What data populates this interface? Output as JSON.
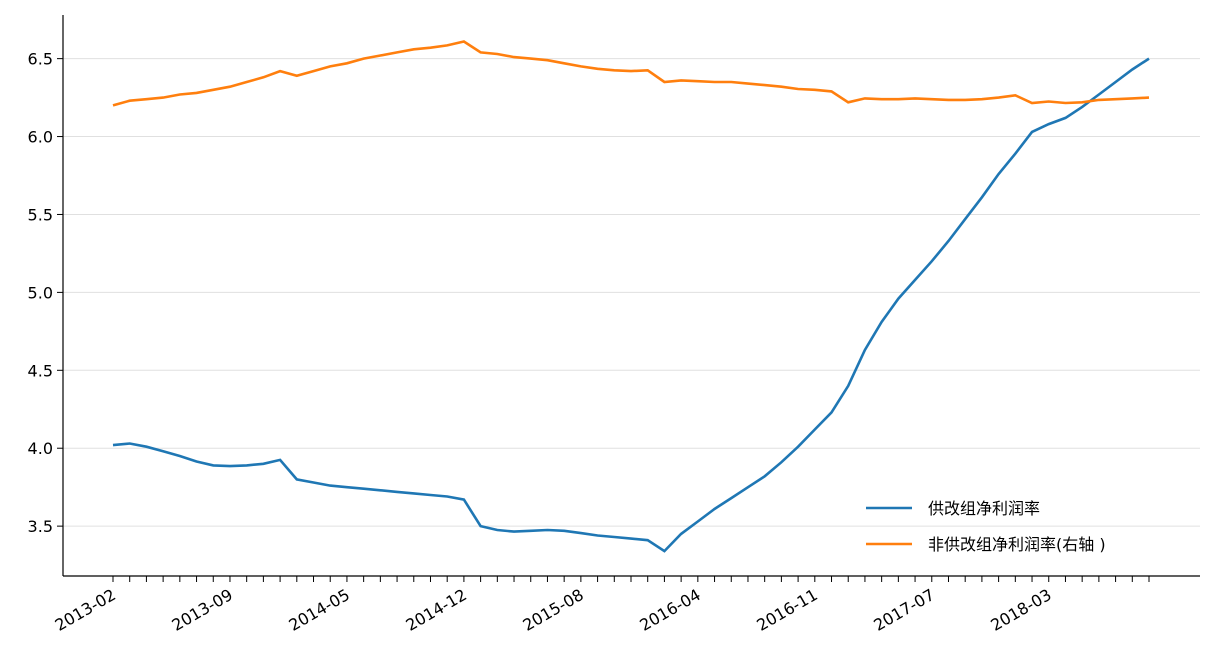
{
  "chart_data": {
    "type": "line",
    "categories": [
      "2013-02",
      null,
      null,
      null,
      null,
      null,
      null,
      "2013-09",
      null,
      null,
      null,
      null,
      null,
      null,
      "2014-05",
      null,
      null,
      null,
      null,
      null,
      null,
      "2014-12",
      null,
      null,
      null,
      null,
      null,
      null,
      "2015-08",
      null,
      null,
      null,
      null,
      null,
      null,
      "2016-04",
      null,
      null,
      null,
      null,
      null,
      null,
      "2016-11",
      null,
      null,
      null,
      null,
      null,
      null,
      "2017-07",
      null,
      null,
      null,
      null,
      null,
      null,
      "2018-03",
      null,
      null,
      null,
      null,
      null,
      null
    ],
    "series": [
      {
        "name": "供改组净利润率",
        "color": "#1f77b4",
        "values": [
          4.02,
          4.03,
          4.01,
          3.98,
          3.95,
          3.915,
          3.89,
          3.885,
          3.89,
          3.9,
          3.925,
          3.8,
          3.78,
          3.76,
          3.75,
          3.74,
          3.73,
          3.72,
          3.71,
          3.7,
          3.69,
          3.67,
          3.5,
          3.475,
          3.465,
          3.47,
          3.475,
          3.47,
          3.455,
          3.44,
          3.43,
          3.42,
          3.41,
          3.34,
          3.45,
          3.53,
          3.61,
          3.68,
          3.75,
          3.82,
          3.91,
          4.01,
          4.12,
          4.23,
          4.4,
          4.63,
          4.81,
          4.96,
          5.08,
          5.2,
          5.33,
          5.47,
          5.61,
          5.76,
          5.89,
          6.03,
          6.08,
          6.12,
          6.19,
          6.27,
          6.35,
          6.43,
          6.5
        ]
      },
      {
        "name": "非供改组净利润率(右轴 )",
        "color": "#ff7f0e",
        "values": [
          6.2,
          6.23,
          6.24,
          6.25,
          6.27,
          6.28,
          6.3,
          6.32,
          6.35,
          6.38,
          6.42,
          6.39,
          6.42,
          6.45,
          6.47,
          6.5,
          6.52,
          6.54,
          6.56,
          6.57,
          6.585,
          6.61,
          6.54,
          6.53,
          6.51,
          6.5,
          6.49,
          6.47,
          6.45,
          6.435,
          6.425,
          6.42,
          6.425,
          6.35,
          6.36,
          6.355,
          6.35,
          6.35,
          6.34,
          6.33,
          6.32,
          6.305,
          6.3,
          6.29,
          6.22,
          6.245,
          6.24,
          6.24,
          6.245,
          6.24,
          6.235,
          6.235,
          6.24,
          6.25,
          6.265,
          6.215,
          6.225,
          6.215,
          6.22,
          6.235,
          6.24,
          6.245,
          6.25
        ]
      }
    ],
    "ylim": [
      3.18,
      6.78
    ],
    "yticks": [
      3.5,
      {
        "value": 4.0,
        "label": "4.0"
      },
      4.5,
      {
        "value": 5.0,
        "label": "5.0"
      },
      5.5,
      {
        "value": 6.0,
        "label": "6.0"
      },
      6.5
    ],
    "grid": true,
    "legend": "lower right"
  }
}
